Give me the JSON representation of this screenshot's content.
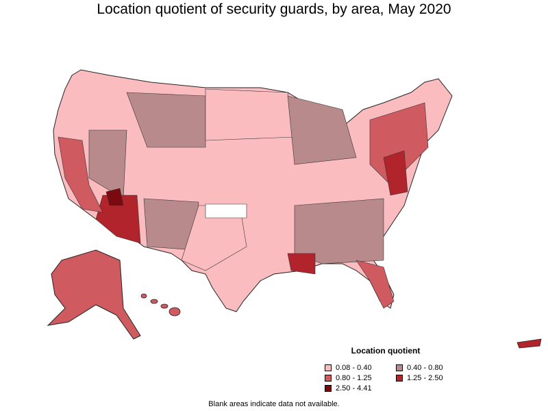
{
  "title": "Location quotient of security guards, by area, May 2020",
  "legend": {
    "title": "Location quotient",
    "items": [
      {
        "label": "0.08 - 0.40",
        "color": "#fbbcc0"
      },
      {
        "label": "0.40 - 0.80",
        "color": "#b98a8c"
      },
      {
        "label": "0.80 - 1.25",
        "color": "#cf5a5f"
      },
      {
        "label": "1.25 - 2.50",
        "color": "#b2242b"
      },
      {
        "label": "2.50 - 4.41",
        "color": "#7a0a0f"
      }
    ]
  },
  "note": "Blank areas indicate data not available.",
  "colors": {
    "lowest": "#fbbcc0",
    "low": "#b98a8c",
    "mid": "#cf5a5f",
    "high": "#b2242b",
    "highest": "#7a0a0f",
    "border": "#222222"
  }
}
